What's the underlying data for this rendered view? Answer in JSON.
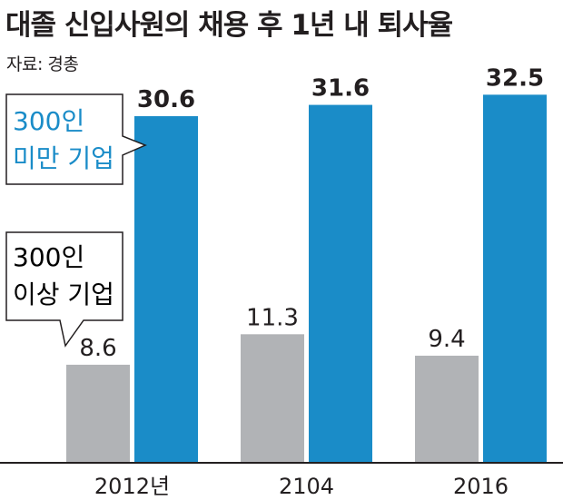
{
  "title": "대졸 신입사원의 채용 후 1년 내 퇴사율",
  "source": "자료: 경총",
  "colors": {
    "small": "#1a8cc8",
    "large": "#b1b3b6",
    "axis": "#231f20",
    "blue_text": "#1a8cc8"
  },
  "chart_data": {
    "type": "bar",
    "title": "대졸 신입사원의 채용 후 1년 내 퇴사율",
    "categories": [
      "2012년",
      "2104",
      "2016"
    ],
    "series": [
      {
        "name": "300인 이상 기업",
        "values": [
          8.6,
          11.3,
          9.4
        ]
      },
      {
        "name": "300인 미만 기업",
        "values": [
          30.6,
          31.6,
          32.5
        ]
      }
    ],
    "xlabel": "",
    "ylabel": "",
    "ylim": [
      0,
      35
    ],
    "grid": false,
    "legend": "callouts-left"
  },
  "callouts": {
    "small": {
      "line1": "300인",
      "line2": "미만 기업"
    },
    "large": {
      "line1": "300인",
      "line2": "이상 기업"
    }
  }
}
